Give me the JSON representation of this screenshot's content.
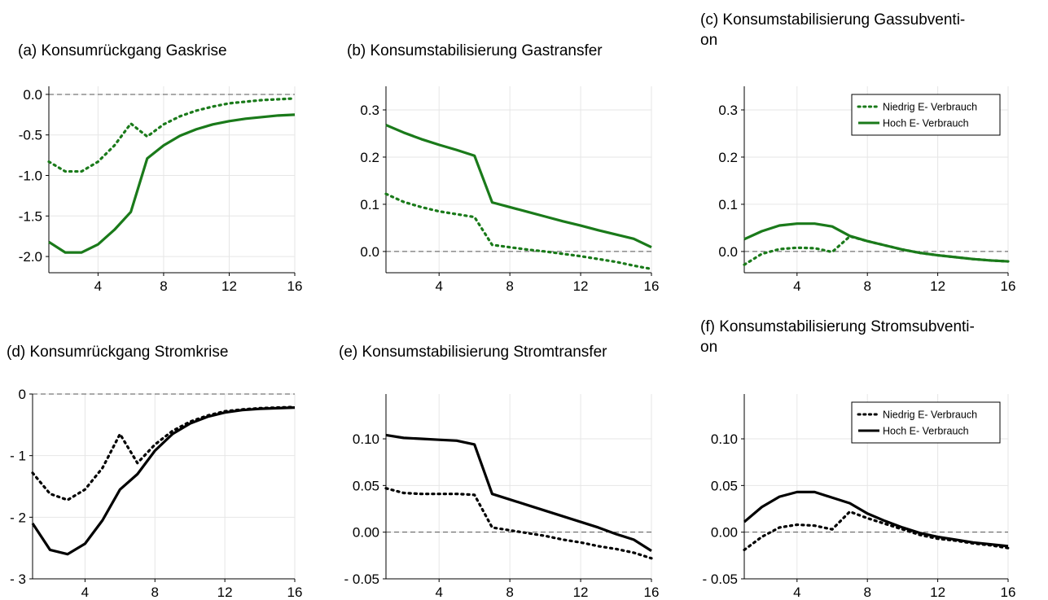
{
  "colors": {
    "gas": "#1a7a1a",
    "strom": "#000000"
  },
  "chart_data": [
    {
      "type": "line",
      "title": "(a) Konsumrückgang Gaskrise",
      "x": [
        1,
        2,
        3,
        4,
        5,
        6,
        7,
        8,
        9,
        10,
        11,
        12,
        13,
        14,
        15,
        16
      ],
      "xticks": [
        "4",
        "8",
        "12",
        "16"
      ],
      "yticks": [
        "0.0",
        "-0.5",
        "-1.0",
        "-1.5",
        "-2.0"
      ],
      "ylim": [
        -2.2,
        0.1
      ],
      "xlim": [
        1,
        16
      ],
      "grid": true,
      "color_key": "gas",
      "series": [
        {
          "style": "dotted",
          "values": [
            -0.83,
            -0.95,
            -0.95,
            -0.83,
            -0.63,
            -0.36,
            -0.52,
            -0.37,
            -0.27,
            -0.2,
            -0.15,
            -0.11,
            -0.09,
            -0.07,
            -0.06,
            -0.05
          ]
        },
        {
          "style": "solid",
          "values": [
            -1.82,
            -1.95,
            -1.95,
            -1.85,
            -1.67,
            -1.45,
            -0.79,
            -0.63,
            -0.51,
            -0.43,
            -0.37,
            -0.33,
            -0.3,
            -0.28,
            -0.26,
            -0.25
          ]
        }
      ]
    },
    {
      "type": "line",
      "title": "(b) Konsumstabilisierung Gastransfer",
      "x": [
        1,
        2,
        3,
        4,
        5,
        6,
        7,
        8,
        9,
        10,
        11,
        12,
        13,
        14,
        15,
        16
      ],
      "xticks": [
        "4",
        "8",
        "12",
        "16"
      ],
      "yticks": [
        "0.3",
        "0.2",
        "0.1",
        "0.0"
      ],
      "ylim": [
        -0.045,
        0.35
      ],
      "xlim": [
        1,
        16
      ],
      "grid": true,
      "color_key": "gas",
      "series": [
        {
          "style": "dotted",
          "values": [
            0.122,
            0.105,
            0.094,
            0.085,
            0.079,
            0.073,
            0.014,
            0.009,
            0.004,
            0.0,
            -0.005,
            -0.01,
            -0.016,
            -0.022,
            -0.03,
            -0.037
          ]
        },
        {
          "style": "solid",
          "values": [
            0.268,
            0.252,
            0.238,
            0.226,
            0.215,
            0.203,
            0.104,
            0.094,
            0.084,
            0.074,
            0.064,
            0.055,
            0.045,
            0.036,
            0.027,
            0.009
          ]
        }
      ]
    },
    {
      "type": "line",
      "title": "(c) Konsumstabilisierung Gassubventi-",
      "title2": "on",
      "x": [
        1,
        2,
        3,
        4,
        5,
        6,
        7,
        8,
        9,
        10,
        11,
        12,
        13,
        14,
        15,
        16
      ],
      "xticks": [
        "4",
        "8",
        "12",
        "16"
      ],
      "yticks": [
        "0.3",
        "0.2",
        "0.1",
        "0.0"
      ],
      "ylim": [
        -0.045,
        0.35
      ],
      "xlim": [
        1,
        16
      ],
      "grid": true,
      "color_key": "gas",
      "legend": [
        "Niedrig E- Verbrauch",
        "Hoch E- Verbrauch"
      ],
      "legend_position": "top-right",
      "series": [
        {
          "name": "Niedrig E- Verbrauch",
          "style": "dotted",
          "values": [
            -0.028,
            -0.005,
            0.005,
            0.008,
            0.007,
            -0.001,
            0.032,
            0.022,
            0.013,
            0.004,
            -0.003,
            -0.008,
            -0.012,
            -0.016,
            -0.019,
            -0.021
          ]
        },
        {
          "name": "Hoch E- Verbrauch",
          "style": "solid",
          "values": [
            0.026,
            0.043,
            0.055,
            0.059,
            0.059,
            0.053,
            0.033,
            0.022,
            0.013,
            0.004,
            -0.003,
            -0.008,
            -0.012,
            -0.016,
            -0.019,
            -0.021
          ]
        }
      ]
    },
    {
      "type": "line",
      "title": "(d) Konsumrückgang Stromkrise",
      "x": [
        1,
        2,
        3,
        4,
        5,
        6,
        7,
        8,
        9,
        10,
        11,
        12,
        13,
        14,
        15,
        16
      ],
      "xticks": [
        "4",
        "8",
        "12",
        "16"
      ],
      "yticks": [
        "0",
        "- 1",
        "- 2",
        "- 3"
      ],
      "ylim": [
        -3.0,
        0.0
      ],
      "xlim": [
        1,
        16
      ],
      "grid": true,
      "color_key": "strom",
      "series": [
        {
          "style": "dotted",
          "values": [
            -1.28,
            -1.62,
            -1.72,
            -1.55,
            -1.2,
            -0.65,
            -1.12,
            -0.82,
            -0.6,
            -0.45,
            -0.35,
            -0.28,
            -0.25,
            -0.23,
            -0.22,
            -0.21
          ]
        },
        {
          "style": "solid",
          "values": [
            -2.1,
            -2.53,
            -2.6,
            -2.43,
            -2.05,
            -1.55,
            -1.3,
            -0.92,
            -0.65,
            -0.48,
            -0.37,
            -0.3,
            -0.26,
            -0.24,
            -0.23,
            -0.22
          ]
        }
      ]
    },
    {
      "type": "line",
      "title": "(e) Konsumstabilisierung Stromtransfer",
      "x": [
        1,
        2,
        3,
        4,
        5,
        6,
        7,
        8,
        9,
        10,
        11,
        12,
        13,
        14,
        15,
        16
      ],
      "xticks": [
        "4",
        "8",
        "12",
        "16"
      ],
      "yticks": [
        "0.10",
        "0.05",
        "0.00",
        "- 0.05"
      ],
      "ylim": [
        -0.05,
        0.148
      ],
      "xlim": [
        1,
        16
      ],
      "grid": true,
      "color_key": "strom",
      "series": [
        {
          "style": "dotted",
          "values": [
            0.047,
            0.042,
            0.041,
            0.041,
            0.041,
            0.04,
            0.005,
            0.002,
            -0.001,
            -0.004,
            -0.008,
            -0.011,
            -0.015,
            -0.018,
            -0.022,
            -0.028
          ]
        },
        {
          "style": "solid",
          "values": [
            0.104,
            0.101,
            0.1,
            0.099,
            0.098,
            0.094,
            0.041,
            0.035,
            0.029,
            0.023,
            0.017,
            0.011,
            0.005,
            -0.002,
            -0.008,
            -0.02
          ]
        }
      ]
    },
    {
      "type": "line",
      "title": "(f) Konsumstabilisierung Stromsubventi-",
      "title2": "on",
      "x": [
        1,
        2,
        3,
        4,
        5,
        6,
        7,
        8,
        9,
        10,
        11,
        12,
        13,
        14,
        15,
        16
      ],
      "xticks": [
        "4",
        "8",
        "12",
        "16"
      ],
      "yticks": [
        "0.10",
        "0.05",
        "0.00",
        "- 0.05"
      ],
      "ylim": [
        -0.05,
        0.148
      ],
      "xlim": [
        1,
        16
      ],
      "grid": true,
      "color_key": "strom",
      "legend": [
        "Niedrig E- Verbrauch",
        "Hoch E- Verbrauch"
      ],
      "legend_position": "top-right",
      "series": [
        {
          "name": "Niedrig E- Verbrauch",
          "style": "dotted",
          "values": [
            -0.019,
            -0.005,
            0.005,
            0.008,
            0.007,
            0.003,
            0.022,
            0.015,
            0.009,
            0.003,
            -0.003,
            -0.007,
            -0.009,
            -0.012,
            -0.014,
            -0.017
          ]
        },
        {
          "name": "Hoch E- Verbrauch",
          "style": "solid",
          "values": [
            0.011,
            0.027,
            0.038,
            0.043,
            0.043,
            0.037,
            0.031,
            0.02,
            0.012,
            0.005,
            -0.001,
            -0.005,
            -0.008,
            -0.011,
            -0.013,
            -0.015
          ]
        }
      ]
    }
  ]
}
